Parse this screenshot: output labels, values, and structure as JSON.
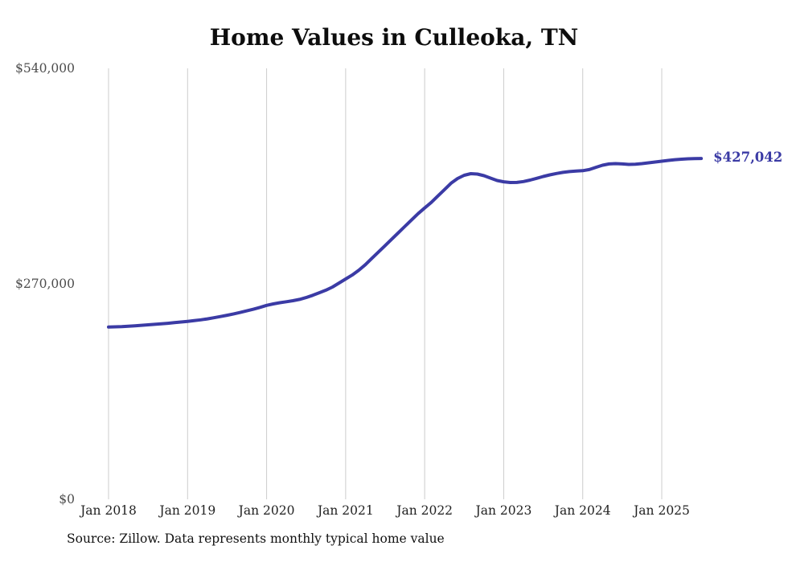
{
  "chart_data": {
    "type": "line",
    "title": "Home Values in Culleoka, TN",
    "xlabel": "",
    "ylabel": "",
    "ylim": [
      0,
      540000
    ],
    "grid": "vertical-only",
    "legend": "none",
    "series_name": "Monthly typical home value",
    "x_months": [
      "2018-01",
      "2018-02",
      "2018-03",
      "2018-04",
      "2018-05",
      "2018-06",
      "2018-07",
      "2018-08",
      "2018-09",
      "2018-10",
      "2018-11",
      "2018-12",
      "2019-01",
      "2019-02",
      "2019-03",
      "2019-04",
      "2019-05",
      "2019-06",
      "2019-07",
      "2019-08",
      "2019-09",
      "2019-10",
      "2019-11",
      "2019-12",
      "2020-01",
      "2020-02",
      "2020-03",
      "2020-04",
      "2020-05",
      "2020-06",
      "2020-07",
      "2020-08",
      "2020-09",
      "2020-10",
      "2020-11",
      "2020-12",
      "2021-01",
      "2021-02",
      "2021-03",
      "2021-04",
      "2021-05",
      "2021-06",
      "2021-07",
      "2021-08",
      "2021-09",
      "2021-10",
      "2021-11",
      "2021-12",
      "2022-01",
      "2022-02",
      "2022-03",
      "2022-04",
      "2022-05",
      "2022-06",
      "2022-07",
      "2022-08",
      "2022-09",
      "2022-10",
      "2022-11",
      "2022-12",
      "2023-01",
      "2023-02",
      "2023-03",
      "2023-04",
      "2023-05",
      "2023-06",
      "2023-07",
      "2023-08",
      "2023-09",
      "2023-10",
      "2023-11",
      "2023-12",
      "2024-01",
      "2024-02",
      "2024-03",
      "2024-04",
      "2024-05",
      "2024-06",
      "2024-07",
      "2024-08",
      "2024-09",
      "2024-10",
      "2024-11",
      "2024-12",
      "2025-01",
      "2025-02",
      "2025-03",
      "2025-04",
      "2025-05",
      "2025-06",
      "2025-07"
    ],
    "values": [
      215800,
      216100,
      216400,
      216900,
      217400,
      218000,
      218600,
      219200,
      219800,
      220500,
      221300,
      222100,
      223000,
      223900,
      224900,
      226100,
      227500,
      229000,
      230600,
      232300,
      234100,
      236100,
      238200,
      240500,
      243000,
      244800,
      246300,
      247500,
      248800,
      250500,
      252800,
      255600,
      258800,
      262000,
      266000,
      271000,
      276000,
      281000,
      287000,
      294000,
      302000,
      310000,
      318000,
      326000,
      334000,
      342000,
      350000,
      358000,
      365000,
      372000,
      380000,
      388000,
      396000,
      402000,
      406000,
      408000,
      407500,
      405500,
      402500,
      399500,
      397800,
      396900,
      397000,
      398100,
      400000,
      402200,
      404500,
      406500,
      408200,
      409600,
      410600,
      411200,
      411800,
      413200,
      416000,
      418600,
      420200,
      420600,
      420200,
      419600,
      419800,
      420600,
      421600,
      422600,
      423600,
      424600,
      425600,
      426200,
      426700,
      426900,
      427042
    ],
    "x_tick_labels": [
      "Jan 2018",
      "Jan 2019",
      "Jan 2020",
      "Jan 2021",
      "Jan 2022",
      "Jan 2023",
      "Jan 2024",
      "Jan 2025"
    ],
    "y_ticks": [
      {
        "value": 540000,
        "label": "$540,000"
      },
      {
        "value": 270000,
        "label": "$270,000"
      },
      {
        "value": 0,
        "label": "$0"
      }
    ],
    "latest_value": 427042,
    "latest_label": "$427,042",
    "source": "Source: Zillow. Data represents monthly typical home value",
    "colors": {
      "line": "#3b3ba5",
      "latest_label": "#3b3ba5",
      "grid": "#cccccc",
      "x_tick": "#222222",
      "y_tick": "#4d4d4d",
      "title": "#0d0d0d",
      "background": "#ffffff"
    }
  }
}
